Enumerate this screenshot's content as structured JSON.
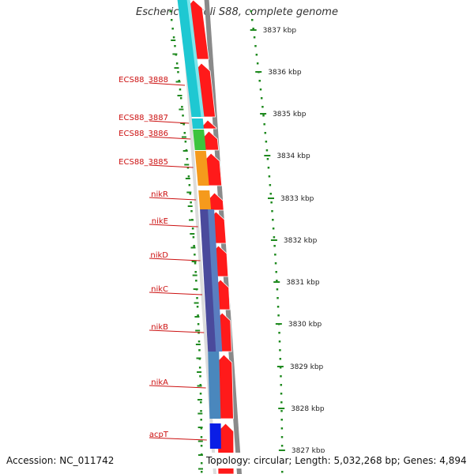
{
  "title": "Escherichia coli S88, complete genome",
  "footer": {
    "accession": "Accession: NC_011742",
    "summary": "Topology: circular; Length: 5,032,268 bp; Genes: 4,894"
  },
  "colors": {
    "forward_cds": "#ff1a1a",
    "label_text": "#cc1111",
    "tick": "#1f8a1f",
    "backbone": "#8a8a8a",
    "cog_cyan": "#1ec8d2",
    "cog_green": "#3cc43c",
    "cog_orange": "#f59a1c",
    "cog_purple": "#4a4a9c",
    "cog_steel": "#4a87bd",
    "cog_blue": "#0a1ee6"
  },
  "kbp_labels": [
    "3837 kbp",
    "3836 kbp",
    "3835 kbp",
    "3834 kbp",
    "3833 kbp",
    "3832 kbp",
    "3831 kbp",
    "3830 kbp",
    "3829 kbp",
    "3828 kbp",
    "3827 kbp"
  ],
  "genes": [
    {
      "name": "ECS88_3888",
      "cog": "cog_cyan"
    },
    {
      "name": "ECS88_3887",
      "cog": "cog_cyan"
    },
    {
      "name": "ECS88_3886",
      "cog": "cog_green"
    },
    {
      "name": "ECS88_3885",
      "cog": "cog_orange"
    },
    {
      "name": "nikR",
      "cog": "cog_orange"
    },
    {
      "name": "nikE",
      "cog": "cog_purple"
    },
    {
      "name": "nikD",
      "cog": "cog_purple"
    },
    {
      "name": "nikC",
      "cog": "cog_purple"
    },
    {
      "name": "nikB",
      "cog": "cog_purple"
    },
    {
      "name": "nikA",
      "cog": "cog_steel"
    },
    {
      "name": "acpT",
      "cog": "cog_blue"
    }
  ]
}
